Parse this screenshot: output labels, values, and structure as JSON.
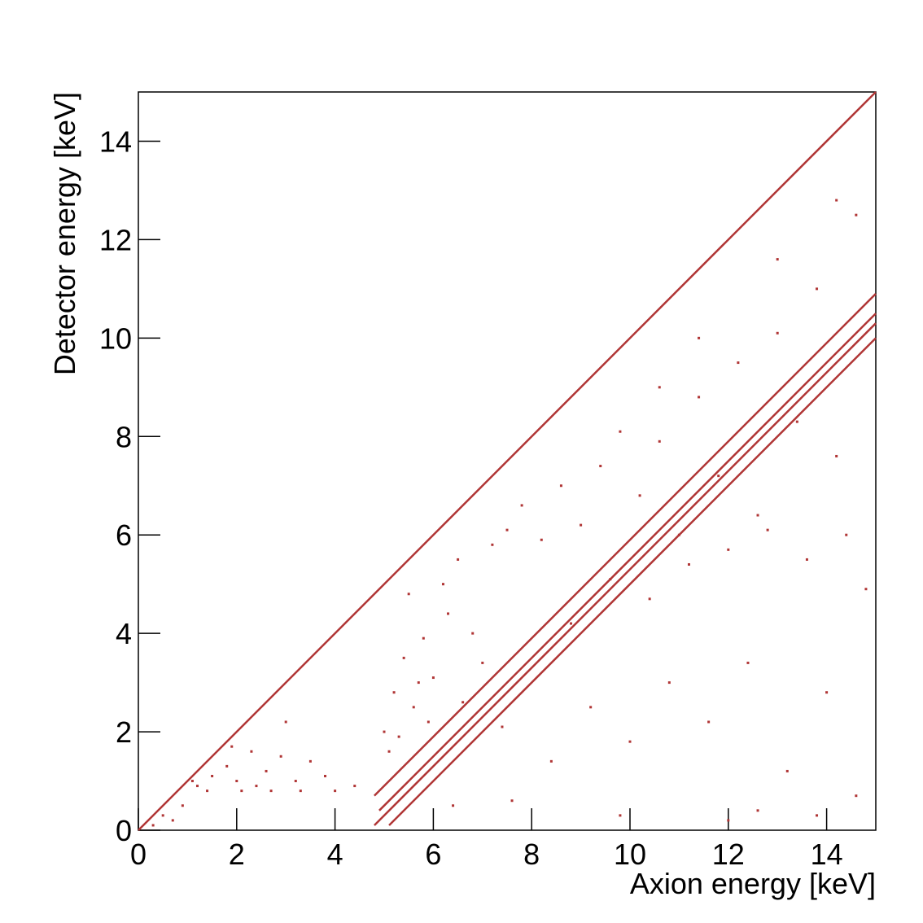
{
  "chart_data": {
    "type": "scatter",
    "xlabel": "Axion energy [keV]",
    "ylabel": "Detector energy [keV]",
    "color": "#b03535",
    "xlim": [
      0,
      15
    ],
    "ylim": [
      0,
      15
    ],
    "xticks": [
      0,
      2,
      4,
      6,
      8,
      10,
      12,
      14
    ],
    "yticks": [
      0,
      2,
      4,
      6,
      8,
      10,
      12,
      14
    ],
    "x": [
      1.2,
      1.5,
      1.8,
      2.0,
      2.3,
      2.6,
      2.9,
      3.2,
      3.5,
      3.8,
      1.4,
      2.1,
      2.7,
      3.3,
      4.0,
      4.4,
      1.1,
      1.9,
      2.4,
      3.0,
      5.0,
      5.2,
      5.4,
      5.6,
      5.8,
      6.0,
      6.3,
      5.1,
      5.5,
      5.9,
      6.5,
      6.8,
      7.2,
      7.5,
      7.0,
      6.2,
      5.3,
      5.7,
      6.6,
      7.8,
      8.2,
      8.6,
      9.0,
      9.4,
      9.8,
      10.2,
      10.6,
      11.0,
      11.4,
      11.8,
      12.2,
      12.6,
      13.0,
      13.4,
      13.8,
      14.2,
      14.6,
      8.8,
      9.6,
      10.4,
      11.2,
      12.0,
      12.8,
      13.6,
      14.4,
      14.8,
      7.4,
      8.4,
      9.2,
      10.0,
      10.8,
      11.6,
      12.4,
      13.2,
      14.0,
      6.4,
      7.6,
      9.8,
      12.6,
      14.6,
      10.6,
      11.4,
      13.0,
      14.2,
      0.3,
      0.5,
      0.7,
      0.9,
      12.0,
      13.8
    ],
    "y": [
      0.9,
      1.1,
      1.3,
      1.0,
      1.6,
      1.2,
      1.5,
      1.0,
      1.4,
      1.1,
      0.8,
      0.8,
      0.8,
      0.8,
      0.8,
      0.9,
      1.0,
      1.7,
      0.9,
      2.2,
      2.0,
      2.8,
      3.5,
      2.5,
      3.9,
      3.1,
      4.4,
      1.6,
      4.8,
      2.2,
      5.5,
      4.0,
      5.8,
      6.1,
      3.4,
      5.0,
      1.9,
      3.0,
      2.6,
      6.6,
      5.9,
      7.0,
      6.2,
      7.4,
      8.1,
      6.8,
      7.9,
      6.0,
      8.8,
      7.2,
      9.5,
      6.4,
      10.1,
      8.3,
      11.0,
      7.6,
      12.5,
      4.2,
      5.1,
      4.7,
      5.4,
      5.7,
      6.1,
      5.5,
      6.0,
      4.9,
      2.1,
      1.4,
      2.5,
      1.8,
      3.0,
      2.2,
      3.4,
      1.2,
      2.8,
      0.5,
      0.6,
      0.3,
      0.4,
      0.7,
      9.0,
      10.0,
      11.6,
      12.8,
      0.1,
      0.3,
      0.2,
      0.5,
      0.2,
      0.3
    ],
    "lines": [
      {
        "x": [
          0,
          15
        ],
        "y": [
          0,
          15
        ]
      },
      {
        "x": [
          4.8,
          15
        ],
        "y": [
          0.7,
          10.9
        ]
      },
      {
        "x": [
          4.9,
          15
        ],
        "y": [
          0.4,
          10.5
        ]
      },
      {
        "x": [
          4.8,
          15
        ],
        "y": [
          0.1,
          10.3
        ]
      },
      {
        "x": [
          5.1,
          15
        ],
        "y": [
          0.1,
          10.0
        ]
      }
    ]
  }
}
